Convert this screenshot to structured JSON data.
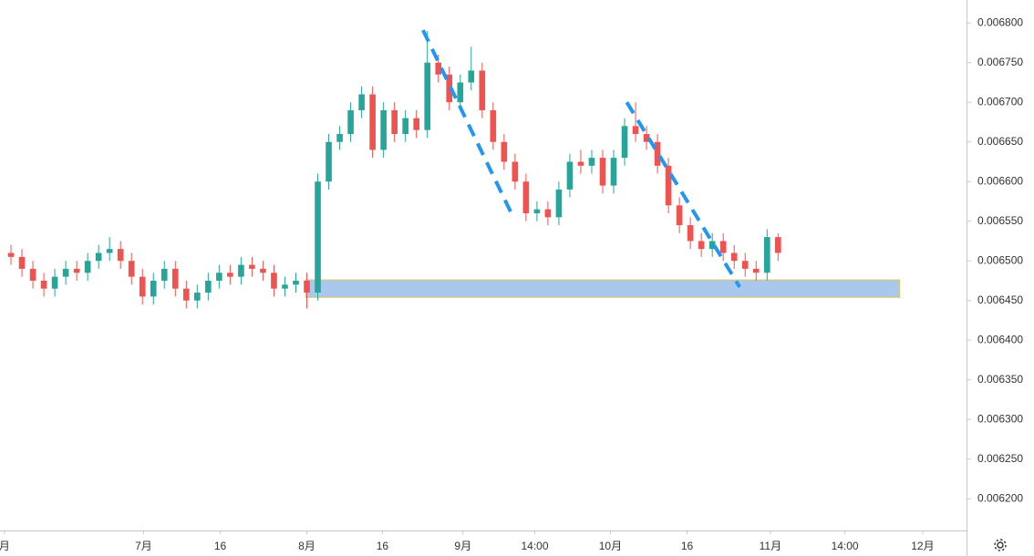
{
  "chart_data": {
    "type": "candlestick",
    "up_color": "#26a69a",
    "down_color": "#ef5350",
    "x": [
      1,
      2,
      3,
      4,
      5,
      6,
      7,
      8,
      9,
      10,
      11,
      12,
      13,
      14,
      15,
      16,
      17,
      18,
      19,
      20,
      21,
      22,
      23,
      24,
      25,
      26,
      27,
      28,
      29,
      30,
      31,
      32,
      33,
      34,
      35,
      36,
      37,
      38,
      39,
      40,
      41,
      42,
      43,
      44,
      45,
      46,
      47,
      48,
      49,
      50,
      51,
      52,
      53,
      54,
      55,
      56,
      57,
      58,
      59,
      60,
      61,
      62,
      63,
      64,
      65,
      66,
      67,
      68,
      69,
      70,
      71
    ],
    "open": [
      0.00651,
      0.006505,
      0.00649,
      0.006475,
      0.006465,
      0.00648,
      0.00649,
      0.006485,
      0.0065,
      0.00651,
      0.006515,
      0.0065,
      0.00648,
      0.006455,
      0.006475,
      0.00649,
      0.006465,
      0.00645,
      0.00646,
      0.006475,
      0.006485,
      0.00648,
      0.006495,
      0.00649,
      0.006485,
      0.006465,
      0.00647,
      0.006475,
      0.00646,
      0.0066,
      0.00665,
      0.00666,
      0.00669,
      0.00671,
      0.00664,
      0.00669,
      0.00666,
      0.00668,
      0.006665,
      0.00675,
      0.006735,
      0.0067,
      0.006725,
      0.00674,
      0.00669,
      0.00665,
      0.006625,
      0.0066,
      0.00656,
      0.006565,
      0.006555,
      0.00659,
      0.006625,
      0.00662,
      0.00663,
      0.006595,
      0.00663,
      0.00667,
      0.00666,
      0.00665,
      0.00662,
      0.00657,
      0.006545,
      0.006525,
      0.006515,
      0.006525,
      0.00651,
      0.0065,
      0.00649,
      0.006485,
      0.00653
    ],
    "high": [
      0.00652,
      0.006515,
      0.0065,
      0.006485,
      0.00649,
      0.0065,
      0.0065,
      0.00651,
      0.00652,
      0.00653,
      0.006525,
      0.00651,
      0.00649,
      0.006485,
      0.0065,
      0.0065,
      0.006475,
      0.00647,
      0.006485,
      0.006495,
      0.006495,
      0.006505,
      0.006505,
      0.0065,
      0.006495,
      0.00648,
      0.006485,
      0.006485,
      0.00661,
      0.00666,
      0.00667,
      0.0067,
      0.00672,
      0.00672,
      0.0067,
      0.0067,
      0.00669,
      0.00669,
      0.00679,
      0.00676,
      0.006745,
      0.006735,
      0.00677,
      0.00675,
      0.0067,
      0.00666,
      0.006635,
      0.00661,
      0.006575,
      0.006575,
      0.0066,
      0.006635,
      0.00664,
      0.00664,
      0.00664,
      0.00664,
      0.00668,
      0.0067,
      0.00667,
      0.00666,
      0.00663,
      0.00658,
      0.006555,
      0.006535,
      0.006535,
      0.006535,
      0.00652,
      0.00651,
      0.0065,
      0.00654,
      0.006535
    ],
    "low": [
      0.006495,
      0.00648,
      0.006465,
      0.006455,
      0.006455,
      0.00647,
      0.006475,
      0.006475,
      0.00649,
      0.0065,
      0.00649,
      0.00647,
      0.006445,
      0.006445,
      0.006465,
      0.006455,
      0.00644,
      0.00644,
      0.00645,
      0.006465,
      0.00647,
      0.00647,
      0.00648,
      0.006475,
      0.006455,
      0.006455,
      0.00646,
      0.00644,
      0.00645,
      0.00659,
      0.00664,
      0.00665,
      0.00668,
      0.00663,
      0.00663,
      0.00665,
      0.00665,
      0.006655,
      0.006655,
      0.006725,
      0.00669,
      0.00669,
      0.006715,
      0.00668,
      0.00664,
      0.006615,
      0.00659,
      0.00655,
      0.00655,
      0.006545,
      0.006545,
      0.00658,
      0.00661,
      0.00661,
      0.006585,
      0.006585,
      0.00662,
      0.00665,
      0.00664,
      0.00661,
      0.00656,
      0.006535,
      0.006515,
      0.006505,
      0.006505,
      0.0065,
      0.00649,
      0.00648,
      0.006475,
      0.006475,
      0.0065
    ],
    "close": [
      0.006505,
      0.00649,
      0.006475,
      0.006465,
      0.00648,
      0.00649,
      0.006485,
      0.0065,
      0.00651,
      0.006515,
      0.0065,
      0.00648,
      0.006455,
      0.006475,
      0.00649,
      0.006465,
      0.00645,
      0.00646,
      0.006475,
      0.006485,
      0.00648,
      0.006495,
      0.00649,
      0.006485,
      0.006465,
      0.00647,
      0.006475,
      0.00646,
      0.0066,
      0.00665,
      0.00666,
      0.00669,
      0.00671,
      0.00664,
      0.00669,
      0.00666,
      0.00668,
      0.006665,
      0.00675,
      0.006735,
      0.0067,
      0.006725,
      0.00674,
      0.00669,
      0.00665,
      0.006625,
      0.0066,
      0.00656,
      0.006565,
      0.006555,
      0.00659,
      0.006625,
      0.00662,
      0.00663,
      0.006595,
      0.00663,
      0.00667,
      0.00666,
      0.00665,
      0.00662,
      0.00657,
      0.006545,
      0.006525,
      0.006515,
      0.006525,
      0.00651,
      0.0065,
      0.00649,
      0.006485,
      0.00653,
      0.00651
    ],
    "xlim": [
      0,
      88.2
    ],
    "xticks": [
      {
        "value": 0.4,
        "label": "月"
      },
      {
        "value": 13.1,
        "label": "7月"
      },
      {
        "value": 20.1,
        "label": "16"
      },
      {
        "value": 28,
        "label": "8月"
      },
      {
        "value": 34.9,
        "label": "16"
      },
      {
        "value": 42.25,
        "label": "9月"
      },
      {
        "value": 48.8,
        "label": "14:00"
      },
      {
        "value": 55.7,
        "label": "10月"
      },
      {
        "value": 62.7,
        "label": "16"
      },
      {
        "value": 70.3,
        "label": "11月"
      },
      {
        "value": 77.1,
        "label": "14:00"
      },
      {
        "value": 84.2,
        "label": "12月"
      }
    ],
    "ylim": [
      0.00616,
      0.006829
    ],
    "yticks": [
      {
        "value": 0.0062,
        "label": "0.006200"
      },
      {
        "value": 0.00625,
        "label": "0.006250"
      },
      {
        "value": 0.0063,
        "label": "0.006300"
      },
      {
        "value": 0.00635,
        "label": "0.006350"
      },
      {
        "value": 0.0064,
        "label": "0.006400"
      },
      {
        "value": 0.00645,
        "label": "0.006450"
      },
      {
        "value": 0.0065,
        "label": "0.006500"
      },
      {
        "value": 0.00655,
        "label": "0.006550"
      },
      {
        "value": 0.0066,
        "label": "0.006600"
      },
      {
        "value": 0.00665,
        "label": "0.006650"
      },
      {
        "value": 0.0067,
        "label": "0.006700"
      },
      {
        "value": 0.00675,
        "label": "0.006750"
      },
      {
        "value": 0.0068,
        "label": "0.006800"
      }
    ],
    "zone": {
      "x": [
        27.9,
        82.1
      ],
      "y": [
        0.006454,
        0.006476
      ],
      "color": "#a9c8ec"
    },
    "trendlines": [
      {
        "x": [
          38.6,
          46.7
        ],
        "y": [
          0.006791,
          0.006559
        ]
      },
      {
        "x": [
          57.2,
          67.5
        ],
        "y": [
          0.0067,
          0.006467
        ]
      }
    ],
    "trendline_color": "#2196f3"
  }
}
